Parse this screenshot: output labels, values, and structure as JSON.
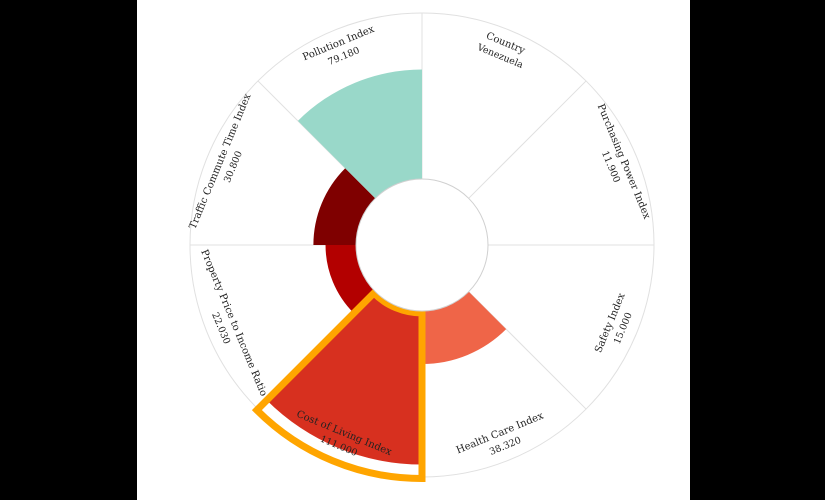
{
  "chart_data": {
    "type": "radial-bar",
    "title": "",
    "country_label": "Country",
    "country_value": "Venezuela",
    "max_value": 120,
    "categories": [
      {
        "name": "Purchasing Power Index",
        "value_text": "11.900",
        "value": 11.9
      },
      {
        "name": "Safety Index",
        "value_text": "15.000",
        "value": 15.0
      },
      {
        "name": "Health Care Index",
        "value_text": "38.320",
        "value": 38.32
      },
      {
        "name": "Cost of Living Index",
        "value_text": "111.000",
        "value": 111.0
      },
      {
        "name": "Property Price to Income Ratio",
        "value_text": "22.030",
        "value": 22.03
      },
      {
        "name": "Traffic Commute Time Index",
        "value_text": "30.800",
        "value": 30.8
      },
      {
        "name": "Pollution Index",
        "value_text": "79.180",
        "value": 79.18
      }
    ],
    "highlighted_category": "Cost of Living Index",
    "colors": {
      "pollution": "#99d8c9",
      "traffic": "#7f0000",
      "property": "#b30000",
      "cost_of_living": "#d7301f",
      "health_care": "#ef6548",
      "highlight_outline": "#ffa500",
      "grid": "#e0e0e0",
      "background": "#ffffff",
      "letterbox": "#000000"
    }
  }
}
